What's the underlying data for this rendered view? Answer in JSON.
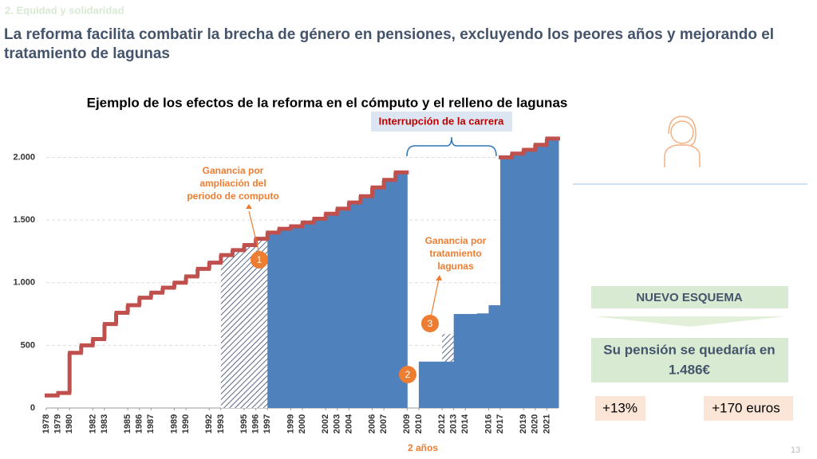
{
  "header": {
    "section": "2. Equidad y solidaridad",
    "title": "La reforma facilita combatir la brecha de género en pensiones, excluyendo los peores años y mejorando el tratamiento de lagunas",
    "page_number": "13"
  },
  "chart_data": {
    "type": "step",
    "title": "Ejemplo de los efectos de la reforma en el cómputo y el relleno de lagunas",
    "x": [
      1978,
      1979,
      1980,
      1981,
      1982,
      1983,
      1984,
      1985,
      1986,
      1987,
      1988,
      1989,
      1990,
      1991,
      1992,
      1993,
      1994,
      1995,
      1996,
      1997,
      1998,
      1999,
      2000,
      2001,
      2002,
      2003,
      2004,
      2005,
      2006,
      2007,
      2008,
      2009,
      2010,
      2011,
      2012,
      2013,
      2014,
      2015,
      2016,
      2017,
      2018,
      2019,
      2020,
      2021
    ],
    "series": [
      {
        "color": "#c0504d",
        "values": [
          100,
          120,
          440,
          500,
          550,
          670,
          760,
          820,
          880,
          920,
          960,
          1000,
          1050,
          1110,
          1160,
          1220,
          1260,
          1300,
          1350,
          1400,
          1430,
          1450,
          1480,
          1510,
          1550,
          1590,
          1640,
          1690,
          1760,
          1820,
          1880,
          null,
          null,
          null,
          null,
          null,
          null,
          null,
          null,
          2000,
          2030,
          2060,
          2100,
          2150
        ]
      },
      {
        "color": "#4f81bd",
        "values": [
          null,
          null,
          null,
          null,
          null,
          null,
          null,
          null,
          null,
          null,
          null,
          null,
          null,
          null,
          null,
          null,
          null,
          null,
          null,
          1400,
          1430,
          1450,
          1480,
          1510,
          1550,
          1590,
          1640,
          1690,
          1760,
          1820,
          1880,
          null,
          370,
          370,
          370,
          750,
          750,
          755,
          820,
          2000,
          2030,
          2060,
          2100,
          2150
        ]
      },
      {
        "color": "#4f81bd",
        "pattern": "hatch",
        "values": [
          null,
          null,
          null,
          null,
          null,
          null,
          null,
          null,
          null,
          null,
          null,
          null,
          null,
          null,
          null,
          1220,
          1260,
          1300,
          1350,
          null,
          null,
          null,
          null,
          null,
          null,
          null,
          null,
          null,
          null,
          null,
          null,
          null,
          null,
          null,
          590,
          null,
          null,
          null,
          null,
          null,
          null,
          null,
          null,
          null
        ]
      }
    ],
    "xlim": [
      1978,
      2022
    ],
    "xticks": [
      1978,
      1979,
      1980,
      1982,
      1983,
      1985,
      1986,
      1987,
      1989,
      1990,
      1992,
      1993,
      1995,
      1996,
      1997,
      1999,
      2000,
      2002,
      2003,
      2004,
      2006,
      2007,
      2009,
      2010,
      2012,
      2013,
      2014,
      2016,
      2017,
      2019,
      2020,
      2021
    ],
    "ylim": [
      0,
      2200
    ],
    "yticks": [
      0,
      500,
      {
        "value": 1000,
        "label": "1.000"
      },
      {
        "value": 1500,
        "label": "1.500"
      },
      {
        "value": 2000,
        "label": "2.000"
      }
    ],
    "grid": true,
    "annotations": {
      "gain_period": [
        "Ganancia por",
        "ampliación del",
        "periodo de computo"
      ],
      "gain_gaps": [
        "Ganancia por",
        "tratamiento",
        "lagunas"
      ],
      "interruption": "Interrupción de la carrera",
      "excluded": "2 años",
      "marker1": "1",
      "marker2": "2",
      "marker3": "3"
    }
  },
  "panel": {
    "scheme": "NUEVO ESQUEMA",
    "pension": [
      "Su pensión se quedaría en",
      "1.486€"
    ],
    "percent": "+13%",
    "euros": "+170 euros"
  }
}
